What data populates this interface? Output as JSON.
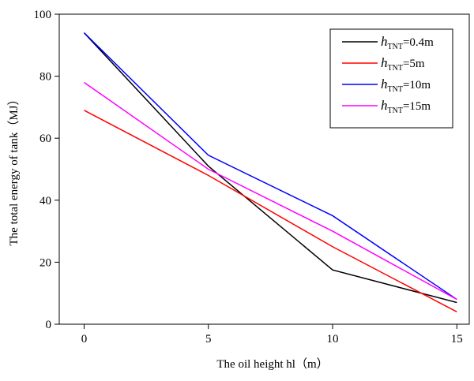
{
  "chart_data": {
    "type": "line",
    "x_label": "The oil height hl（m）",
    "y_label": "The total energy of tank（MJ）",
    "x": [
      0,
      5,
      10,
      15
    ],
    "series": [
      {
        "name": "hTNT=0.4m",
        "color": "#000000",
        "values": [
          94,
          51,
          17.5,
          7
        ]
      },
      {
        "name": "hTNT=5m",
        "color": "#ff0000",
        "values": [
          69,
          48,
          25,
          4
        ]
      },
      {
        "name": "hTNT=10m",
        "color": "#0000ff",
        "values": [
          94,
          54.5,
          35,
          8
        ]
      },
      {
        "name": "hTNT=15m",
        "color": "#ff00ff",
        "values": [
          78,
          50,
          30,
          8
        ]
      }
    ],
    "xlim": [
      -1,
      15.5
    ],
    "xticks": [
      0,
      5,
      10,
      15
    ],
    "ylim": [
      0,
      100
    ],
    "yticks": [
      0,
      20,
      40,
      60,
      80,
      100
    ],
    "legend": "upper right",
    "grid": false
  }
}
